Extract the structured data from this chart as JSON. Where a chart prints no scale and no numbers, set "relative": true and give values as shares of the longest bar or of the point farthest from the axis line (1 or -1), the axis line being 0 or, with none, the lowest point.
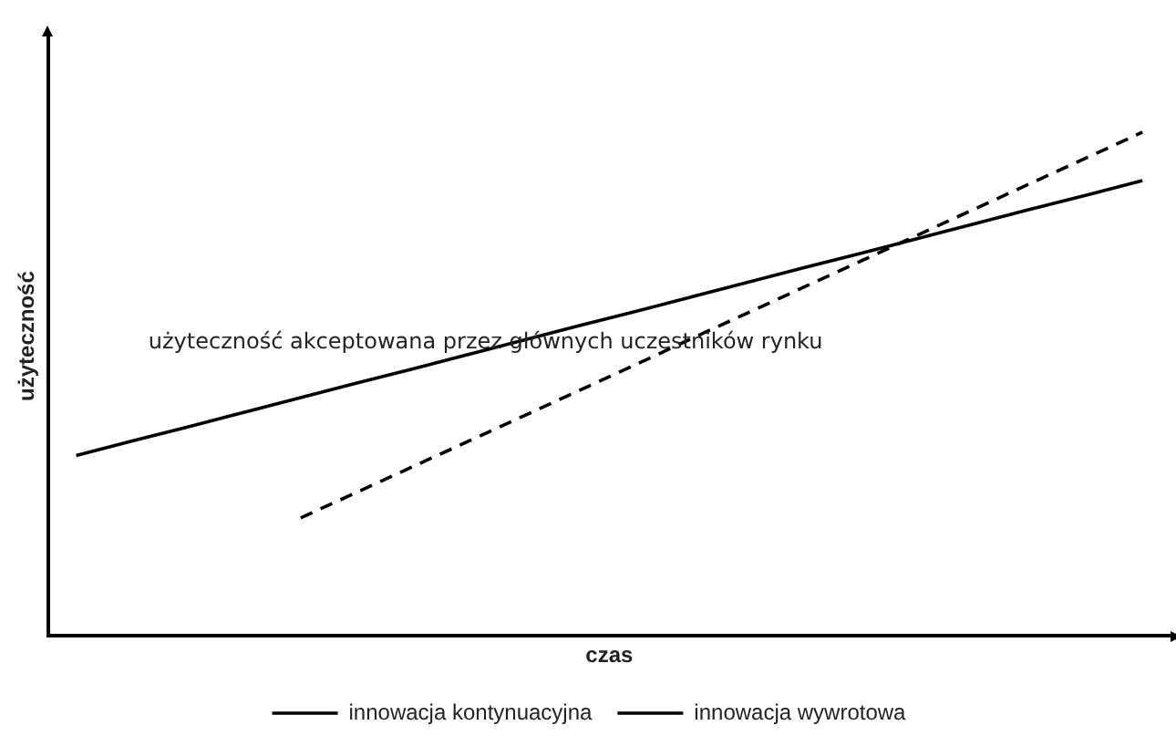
{
  "chart_data": {
    "type": "line",
    "relative": true,
    "xlabel": "czas",
    "ylabel": "użyteczność",
    "categories": [
      null,
      null,
      null,
      null,
      null,
      null,
      null,
      null,
      null,
      null,
      null,
      null,
      null,
      null,
      null,
      null,
      null,
      null,
      null,
      null
    ],
    "series": [
      {
        "name": "innowacja kontynuacyjna",
        "color": "#000000",
        "line_style": "solid",
        "values": [
          0.358,
          0.387,
          0.415,
          0.444,
          0.473,
          0.502,
          0.53,
          0.559,
          0.588,
          0.617,
          0.645,
          0.674,
          0.703,
          0.732,
          0.76,
          0.789,
          0.818,
          0.847,
          0.875,
          0.904
        ]
      },
      {
        "name": "innowacja wywrotowa",
        "color": "#000000",
        "line_style": "dashed",
        "values": [
          null,
          null,
          null,
          null,
          0.234,
          0.285,
          0.336,
          0.387,
          0.438,
          0.489,
          0.54,
          0.592,
          0.643,
          0.694,
          0.745,
          0.796,
          0.847,
          0.898,
          0.949,
          1
        ]
      }
    ],
    "annotations": [
      "użyteczność akceptowana przez głównych uczestników rynku"
    ],
    "legend": "bottom",
    "grid": false,
    "tick_labels": false,
    "marker": "none"
  }
}
